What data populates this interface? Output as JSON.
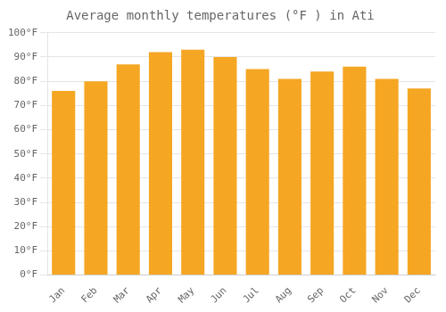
{
  "chart_data": {
    "type": "bar",
    "title": "Average monthly temperatures (°F ) in Ati",
    "categories": [
      "Jan",
      "Feb",
      "Mar",
      "Apr",
      "May",
      "Jun",
      "Jul",
      "Aug",
      "Sep",
      "Oct",
      "Nov",
      "Dec"
    ],
    "values": [
      76,
      80,
      87,
      92,
      93,
      90,
      85,
      81,
      84,
      86,
      81,
      77
    ],
    "color": "#F5A623",
    "ylim": [
      0,
      100
    ],
    "yticks": [
      {
        "value": 0,
        "label": "0°F"
      },
      {
        "value": 10,
        "label": "10°F"
      },
      {
        "value": 20,
        "label": "20°F"
      },
      {
        "value": 30,
        "label": "30°F"
      },
      {
        "value": 40,
        "label": "40°F"
      },
      {
        "value": 50,
        "label": "50°F"
      },
      {
        "value": 60,
        "label": "60°F"
      },
      {
        "value": 70,
        "label": "70°F"
      },
      {
        "value": 80,
        "label": "80°F"
      },
      {
        "value": 90,
        "label": "90°F"
      },
      {
        "value": 100,
        "label": "100°F"
      }
    ],
    "grid": true
  }
}
